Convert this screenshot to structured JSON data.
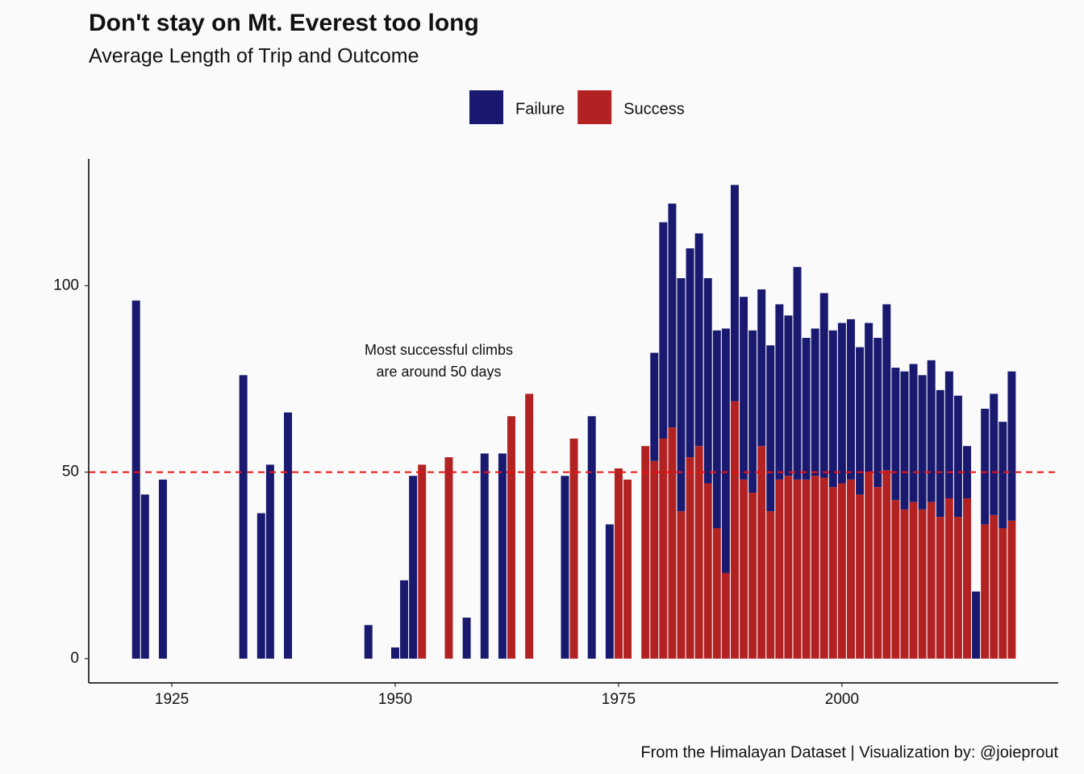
{
  "chart_data": {
    "type": "stacked_bar",
    "title": "Don't stay on Mt. Everest too long",
    "subtitle": "Average Length of Trip and Outcome",
    "caption": "From the Himalayan Dataset | Visualization by: @joieprout",
    "annotation": [
      "Most successful climbs",
      "are around 50 days"
    ],
    "reference_line": {
      "value": 50,
      "color": "#ee1111"
    },
    "x": [
      1921,
      1922,
      1924,
      1933,
      1935,
      1936,
      1938,
      1947,
      1950,
      1951,
      1952,
      1953,
      1956,
      1958,
      1960,
      1962,
      1963,
      1965,
      1969,
      1970,
      1972,
      1974,
      1975,
      1976,
      1978,
      1979,
      1980,
      1981,
      1982,
      1983,
      1984,
      1985,
      1986,
      1987,
      1988,
      1989,
      1990,
      1991,
      1992,
      1993,
      1994,
      1995,
      1996,
      1997,
      1998,
      1999,
      2000,
      2001,
      2002,
      2003,
      2004,
      2005,
      2006,
      2007,
      2008,
      2009,
      2010,
      2011,
      2012,
      2013,
      2014,
      2015,
      2016,
      2017,
      2018,
      2019
    ],
    "series": [
      {
        "name": "Success",
        "color": "#b22222",
        "values": [
          null,
          null,
          null,
          null,
          null,
          null,
          null,
          null,
          null,
          null,
          null,
          52,
          54,
          null,
          null,
          null,
          65,
          71,
          null,
          59,
          null,
          null,
          51,
          48,
          57,
          53,
          59,
          62,
          39.5,
          54,
          57,
          47,
          35,
          23,
          69,
          48,
          44.5,
          57,
          39.5,
          48,
          49,
          48,
          48,
          49,
          48.5,
          46,
          47,
          48,
          44,
          50,
          46,
          50.5,
          42.5,
          40,
          42,
          40,
          42,
          38,
          43,
          38,
          43,
          null,
          36,
          38.5,
          35,
          37
        ]
      },
      {
        "name": "Failure",
        "color": "#191970",
        "values": [
          96,
          44,
          48,
          76,
          39,
          52,
          66,
          9,
          3,
          21,
          49,
          null,
          null,
          11,
          55,
          55,
          null,
          null,
          49,
          null,
          65,
          36,
          null,
          null,
          null,
          29,
          58,
          60,
          62.5,
          56,
          57,
          55,
          53,
          65.5,
          58,
          49,
          43.5,
          42,
          44.5,
          47,
          43,
          57,
          38,
          39.5,
          49.5,
          42,
          43,
          43,
          39.5,
          40,
          40,
          44.5,
          35.5,
          37,
          37,
          36,
          38,
          34,
          34,
          32.5,
          14,
          18,
          31,
          32.5,
          28.5,
          40
        ]
      }
    ],
    "legend_order": [
      1,
      0
    ],
    "legend_position": "top",
    "xlim": [
      1915.7,
      2024.2
    ],
    "xticks": [
      1925,
      1950,
      1975,
      2000
    ],
    "ylim": [
      -6.5,
      134
    ],
    "yticks": [
      0,
      50,
      100
    ],
    "grid": false
  }
}
